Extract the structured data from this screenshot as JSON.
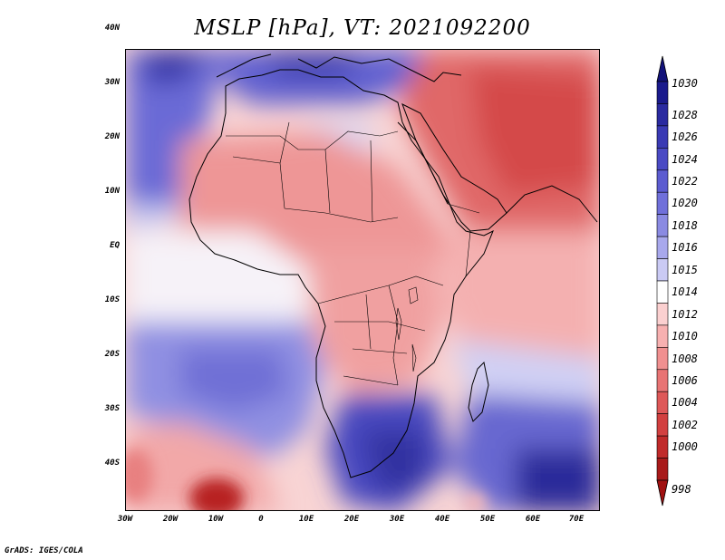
{
  "title": "MSLP [hPa], VT: 2021092200",
  "credit": "GrADS: IGES/COLA",
  "axes": {
    "lat_labels": [
      "40N",
      "30N",
      "20N",
      "10N",
      "EQ",
      "10S",
      "20S",
      "30S",
      "40S"
    ],
    "lon_labels": [
      "30W",
      "20W",
      "10W",
      "0",
      "10E",
      "20E",
      "30E",
      "40E",
      "50E",
      "60E",
      "70E"
    ]
  },
  "colorbar": {
    "labels": [
      "1030",
      "1028",
      "1026",
      "1024",
      "1022",
      "1020",
      "1018",
      "1016",
      "1015",
      "1014",
      "1012",
      "1010",
      "1008",
      "1006",
      "1004",
      "1002",
      "1000",
      "998"
    ],
    "colors": [
      "#1a1a8c",
      "#2a2aa0",
      "#3a3ab4",
      "#4a4ac4",
      "#5c5cd0",
      "#7070da",
      "#8a8ae2",
      "#a8a8ec",
      "#cacaf4",
      "#ffffff",
      "#fbd0d0",
      "#f7b0b0",
      "#f09090",
      "#e87474",
      "#de5858",
      "#d24040",
      "#c02a2a",
      "#a81a1a"
    ]
  },
  "map": {
    "ocean_colors": {
      "high": "#4848c2",
      "mid": "#8080dc",
      "low": "#c4c4f2",
      "neutral": "#ffffff",
      "warm": "#f6b4b4",
      "hot": "#e07070"
    }
  }
}
